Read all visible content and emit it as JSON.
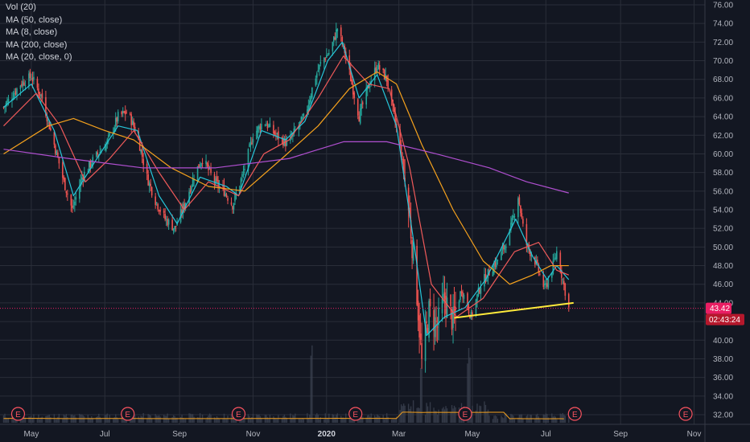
{
  "legend": [
    {
      "label": "Vol (20)"
    },
    {
      "label": "MA (50, close)"
    },
    {
      "label": "MA (8, close)"
    },
    {
      "label": "MA (200, close)"
    },
    {
      "label": "MA (20, close, 0)"
    }
  ],
  "colors": {
    "background": "#131722",
    "grid": "#2a2e39",
    "up": "#26a69a",
    "down": "#ef5350",
    "ma8": "#26c6da",
    "ma20": "#f05a5a",
    "ma50": "#f6a21d",
    "ma200": "#b04fd0",
    "volume_ma": "#f6a21d",
    "trendline": "#ffeb3b",
    "price_line": "#e91e63",
    "earnings": "#f7525f"
  },
  "current_price": "43.42",
  "countdown": "02:43:24",
  "earnings_label": "E",
  "chart_data": {
    "type": "candlestick",
    "title": "",
    "y_axis": {
      "side": "right",
      "range": [
        31,
        76.5
      ],
      "ticks": [
        "76.00",
        "74.00",
        "72.00",
        "70.00",
        "68.00",
        "66.00",
        "64.00",
        "62.00",
        "60.00",
        "58.00",
        "56.00",
        "54.00",
        "52.00",
        "50.00",
        "48.00",
        "46.00",
        "44.00",
        "42.00",
        "40.00",
        "38.00",
        "36.00",
        "34.00",
        "32.00"
      ]
    },
    "x_axis": {
      "ticks": [
        {
          "label": "May",
          "date": "2019-05-01"
        },
        {
          "label": "Jul",
          "date": "2019-07-01"
        },
        {
          "label": "Sep",
          "date": "2019-09-01"
        },
        {
          "label": "Nov",
          "date": "2019-11-01"
        },
        {
          "label": "2020",
          "date": "2020-01-01",
          "bold": true
        },
        {
          "label": "Mar",
          "date": "2020-03-01"
        },
        {
          "label": "May",
          "date": "2020-05-01"
        },
        {
          "label": "Jul",
          "date": "2020-07-01"
        },
        {
          "label": "Sep",
          "date": "2020-09-01"
        },
        {
          "label": "Nov",
          "date": "2020-11-01"
        }
      ],
      "range": [
        "2019-04-05",
        "2020-11-10"
      ]
    },
    "grid": true,
    "price_path": [
      [
        "2019-04-08",
        65.0
      ],
      [
        "2019-04-22",
        67.5
      ],
      [
        "2019-05-01",
        68.3
      ],
      [
        "2019-05-10",
        66.0
      ],
      [
        "2019-05-20",
        61.0
      ],
      [
        "2019-05-28",
        57.0
      ],
      [
        "2019-06-04",
        54.0
      ],
      [
        "2019-06-12",
        57.5
      ],
      [
        "2019-06-22",
        59.5
      ],
      [
        "2019-07-02",
        61.0
      ],
      [
        "2019-07-12",
        64.0
      ],
      [
        "2019-07-20",
        64.5
      ],
      [
        "2019-07-28",
        62.0
      ],
      [
        "2019-08-05",
        57.5
      ],
      [
        "2019-08-12",
        55.0
      ],
      [
        "2019-08-20",
        53.0
      ],
      [
        "2019-08-28",
        52.0
      ],
      [
        "2019-09-05",
        54.5
      ],
      [
        "2019-09-14",
        58.0
      ],
      [
        "2019-09-20",
        59.5
      ],
      [
        "2019-09-30",
        57.0
      ],
      [
        "2019-10-08",
        56.0
      ],
      [
        "2019-10-15",
        54.5
      ],
      [
        "2019-10-24",
        58.0
      ],
      [
        "2019-11-01",
        62.0
      ],
      [
        "2019-11-10",
        63.5
      ],
      [
        "2019-11-20",
        62.0
      ],
      [
        "2019-11-30",
        61.0
      ],
      [
        "2019-12-06",
        62.5
      ],
      [
        "2019-12-14",
        64.0
      ],
      [
        "2019-12-22",
        68.0
      ],
      [
        "2019-12-28",
        70.0
      ],
      [
        "2020-01-04",
        71.0
      ],
      [
        "2020-01-10",
        73.5
      ],
      [
        "2020-01-16",
        71.0
      ],
      [
        "2020-01-22",
        67.5
      ],
      [
        "2020-01-28",
        64.0
      ],
      [
        "2020-02-04",
        67.0
      ],
      [
        "2020-02-12",
        69.5
      ],
      [
        "2020-02-20",
        68.0
      ],
      [
        "2020-02-26",
        64.0
      ],
      [
        "2020-03-03",
        60.0
      ],
      [
        "2020-03-10",
        53.0
      ],
      [
        "2020-03-16",
        45.0
      ],
      [
        "2020-03-20",
        37.5
      ],
      [
        "2020-03-26",
        43.0
      ],
      [
        "2020-04-02",
        41.5
      ],
      [
        "2020-04-08",
        44.5
      ],
      [
        "2020-04-15",
        42.0
      ],
      [
        "2020-04-22",
        45.5
      ],
      [
        "2020-04-30",
        42.5
      ],
      [
        "2020-05-08",
        46.0
      ],
      [
        "2020-05-16",
        47.5
      ],
      [
        "2020-05-24",
        49.0
      ],
      [
        "2020-06-01",
        51.5
      ],
      [
        "2020-06-08",
        55.5
      ],
      [
        "2020-06-14",
        50.5
      ],
      [
        "2020-06-22",
        48.5
      ],
      [
        "2020-06-30",
        45.5
      ],
      [
        "2020-07-06",
        47.5
      ],
      [
        "2020-07-10",
        49.5
      ],
      [
        "2020-07-15",
        46.5
      ],
      [
        "2020-07-20",
        43.4
      ]
    ],
    "series": [
      {
        "name": "MA (8, close)",
        "color": "#26c6da",
        "points": [
          [
            "2019-04-08",
            65.0
          ],
          [
            "2019-05-01",
            67.5
          ],
          [
            "2019-05-20",
            62.5
          ],
          [
            "2019-06-05",
            55.5
          ],
          [
            "2019-06-22",
            59.0
          ],
          [
            "2019-07-12",
            63.0
          ],
          [
            "2019-07-28",
            62.5
          ],
          [
            "2019-08-15",
            55.5
          ],
          [
            "2019-08-30",
            52.5
          ],
          [
            "2019-09-18",
            57.5
          ],
          [
            "2019-10-10",
            56.5
          ],
          [
            "2019-10-20",
            55.5
          ],
          [
            "2019-11-08",
            62.5
          ],
          [
            "2019-11-28",
            61.5
          ],
          [
            "2019-12-14",
            63.5
          ],
          [
            "2020-01-02",
            70.0
          ],
          [
            "2020-01-14",
            72.0
          ],
          [
            "2020-01-28",
            66.0
          ],
          [
            "2020-02-12",
            68.5
          ],
          [
            "2020-02-28",
            63.0
          ],
          [
            "2020-03-14",
            50.0
          ],
          [
            "2020-03-24",
            40.5
          ],
          [
            "2020-04-08",
            42.5
          ],
          [
            "2020-04-25",
            43.5
          ],
          [
            "2020-05-12",
            46.5
          ],
          [
            "2020-06-06",
            53.0
          ],
          [
            "2020-06-20",
            49.0
          ],
          [
            "2020-07-02",
            46.5
          ],
          [
            "2020-07-10",
            48.0
          ],
          [
            "2020-07-20",
            46.5
          ]
        ]
      },
      {
        "name": "MA (20, close, 0)",
        "color": "#f05a5a",
        "points": [
          [
            "2019-04-08",
            63.0
          ],
          [
            "2019-05-05",
            66.5
          ],
          [
            "2019-05-25",
            63.0
          ],
          [
            "2019-06-15",
            57.0
          ],
          [
            "2019-07-05",
            59.5
          ],
          [
            "2019-07-25",
            62.5
          ],
          [
            "2019-08-15",
            58.0
          ],
          [
            "2019-09-05",
            54.0
          ],
          [
            "2019-09-25",
            57.0
          ],
          [
            "2019-10-20",
            55.5
          ],
          [
            "2019-11-10",
            60.0
          ],
          [
            "2019-12-01",
            61.5
          ],
          [
            "2019-12-25",
            66.0
          ],
          [
            "2020-01-15",
            70.5
          ],
          [
            "2020-02-05",
            67.5
          ],
          [
            "2020-02-22",
            67.0
          ],
          [
            "2020-03-10",
            58.5
          ],
          [
            "2020-03-28",
            46.0
          ],
          [
            "2020-04-18",
            42.5
          ],
          [
            "2020-05-10",
            44.5
          ],
          [
            "2020-06-05",
            49.5
          ],
          [
            "2020-06-25",
            50.5
          ],
          [
            "2020-07-10",
            47.5
          ],
          [
            "2020-07-20",
            47.0
          ]
        ]
      },
      {
        "name": "MA (50, close)",
        "color": "#f6a21d",
        "points": [
          [
            "2019-04-08",
            60.0
          ],
          [
            "2019-05-15",
            63.0
          ],
          [
            "2019-06-05",
            63.8
          ],
          [
            "2019-07-01",
            62.5
          ],
          [
            "2019-07-25",
            61.5
          ],
          [
            "2019-08-25",
            58.5
          ],
          [
            "2019-09-25",
            56.5
          ],
          [
            "2019-10-25",
            56.0
          ],
          [
            "2019-11-25",
            59.5
          ],
          [
            "2019-12-25",
            63.0
          ],
          [
            "2020-01-20",
            67.0
          ],
          [
            "2020-02-12",
            68.8
          ],
          [
            "2020-02-28",
            67.5
          ],
          [
            "2020-03-20",
            61.0
          ],
          [
            "2020-04-15",
            54.0
          ],
          [
            "2020-05-10",
            48.5
          ],
          [
            "2020-06-01",
            46.0
          ],
          [
            "2020-06-20",
            47.0
          ],
          [
            "2020-07-05",
            48.0
          ],
          [
            "2020-07-20",
            48.0
          ]
        ]
      },
      {
        "name": "MA (200, close)",
        "color": "#b04fd0",
        "points": [
          [
            "2019-04-08",
            60.5
          ],
          [
            "2019-06-01",
            59.5
          ],
          [
            "2019-08-01",
            58.5
          ],
          [
            "2019-10-01",
            58.5
          ],
          [
            "2019-12-01",
            59.5
          ],
          [
            "2020-01-15",
            61.3
          ],
          [
            "2020-02-20",
            61.3
          ],
          [
            "2020-04-01",
            60.0
          ],
          [
            "2020-05-15",
            58.5
          ],
          [
            "2020-06-15",
            57.0
          ],
          [
            "2020-07-20",
            55.8
          ]
        ]
      }
    ],
    "trendline": [
      [
        "2020-04-16",
        42.4
      ],
      [
        "2020-07-24",
        44.0
      ]
    ],
    "earnings_dates": [
      "2019-04-20",
      "2019-07-20",
      "2019-10-20",
      "2020-01-25",
      "2020-04-25",
      "2020-07-25",
      "2020-10-25"
    ],
    "volume_spikes": [
      "2019-12-20",
      "2020-03-20",
      "2020-04-28"
    ]
  }
}
